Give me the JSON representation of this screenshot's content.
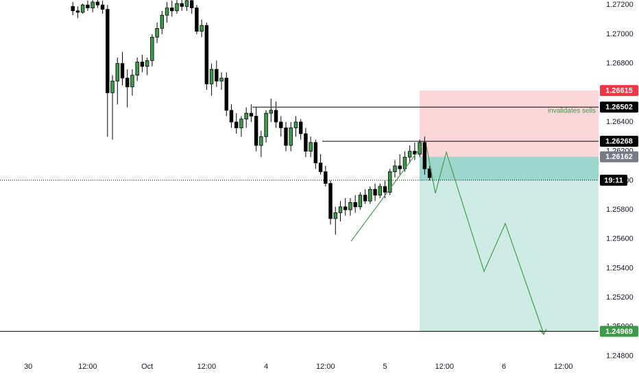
{
  "chart_data": {
    "type": "candlestick",
    "open": [
      1.2719,
      1.2716,
      1.2715,
      1.272,
      1.2718,
      1.2722,
      1.272,
      1.2717,
      1.266,
      1.2668,
      1.268,
      1.267,
      1.2664,
      1.2672,
      1.2681,
      1.2678,
      1.2682,
      1.2698,
      1.2704,
      1.2713,
      1.2718,
      1.2716,
      1.2721,
      1.2719,
      1.2723,
      1.2718,
      1.2702,
      1.2706,
      1.2666,
      1.2676,
      1.2668,
      1.267,
      1.2648,
      1.264,
      1.2636,
      1.2642,
      1.2646,
      1.2644,
      1.2624,
      1.263,
      1.2646,
      1.2648,
      1.264,
      1.2636,
      1.2624,
      1.2636,
      1.264,
      1.2632,
      1.262,
      1.2626,
      1.2612,
      1.2606,
      1.2598,
      1.2574,
      1.2578,
      1.2582,
      1.258,
      1.2585,
      1.2582,
      1.259,
      1.2586,
      1.2594,
      1.259,
      1.2596,
      1.2592,
      1.2606,
      1.261,
      1.2608,
      1.2616,
      1.262,
      1.2618,
      1.2626,
      1.2608
    ],
    "high": [
      1.2722,
      1.2719,
      1.2721,
      1.2723,
      1.2724,
      1.2725,
      1.2723,
      1.272,
      1.2672,
      1.2684,
      1.2688,
      1.2676,
      1.2676,
      1.2684,
      1.2686,
      1.2684,
      1.27,
      1.2708,
      1.2716,
      1.2722,
      1.2723,
      1.2724,
      1.2725,
      1.2726,
      1.2726,
      1.272,
      1.271,
      1.2708,
      1.268,
      1.2682,
      1.2674,
      1.2674,
      1.2652,
      1.2646,
      1.2644,
      1.265,
      1.2652,
      1.265,
      1.2634,
      1.2648,
      1.2656,
      1.2654,
      1.2644,
      1.264,
      1.264,
      1.2644,
      1.2642,
      1.2636,
      1.263,
      1.2628,
      1.2618,
      1.261,
      1.26,
      1.2582,
      1.2586,
      1.2588,
      1.2588,
      1.259,
      1.2592,
      1.2594,
      1.2596,
      1.2598,
      1.2598,
      1.26,
      1.2608,
      1.2614,
      1.2618,
      1.262,
      1.2624,
      1.2626,
      1.2628,
      1.263,
      1.261
    ],
    "low": [
      1.2713,
      1.2711,
      1.2714,
      1.2716,
      1.2715,
      1.2718,
      1.2714,
      1.263,
      1.2628,
      1.2652,
      1.2665,
      1.265,
      1.2658,
      1.2668,
      1.2674,
      1.2672,
      1.2678,
      1.2694,
      1.27,
      1.2708,
      1.2712,
      1.2714,
      1.2716,
      1.2716,
      1.2714,
      1.27,
      1.2698,
      1.2662,
      1.2658,
      1.2664,
      1.2662,
      1.2644,
      1.2636,
      1.2632,
      1.263,
      1.2636,
      1.264,
      1.262,
      1.2616,
      1.2626,
      1.264,
      1.2636,
      1.263,
      1.262,
      1.262,
      1.263,
      1.2628,
      1.2616,
      1.2616,
      1.2608,
      1.2604,
      1.2596,
      1.257,
      1.2563,
      1.2572,
      1.2576,
      1.2576,
      1.2578,
      1.258,
      1.2584,
      1.2584,
      1.2586,
      1.2588,
      1.2588,
      1.259,
      1.2602,
      1.2604,
      1.2606,
      1.2612,
      1.2614,
      1.2616,
      1.2604,
      1.26
    ],
    "close": [
      1.2716,
      1.2715,
      1.272,
      1.2718,
      1.2722,
      1.272,
      1.2717,
      1.266,
      1.2668,
      1.268,
      1.267,
      1.2664,
      1.2672,
      1.2681,
      1.2678,
      1.2682,
      1.2698,
      1.2704,
      1.2713,
      1.2718,
      1.2716,
      1.2721,
      1.2719,
      1.2723,
      1.2718,
      1.2702,
      1.2706,
      1.2666,
      1.2676,
      1.2668,
      1.267,
      1.2648,
      1.264,
      1.2636,
      1.2642,
      1.2646,
      1.2644,
      1.2624,
      1.263,
      1.2646,
      1.2648,
      1.264,
      1.2636,
      1.2624,
      1.2636,
      1.264,
      1.2632,
      1.262,
      1.2626,
      1.2612,
      1.2606,
      1.2598,
      1.2574,
      1.2578,
      1.2582,
      1.258,
      1.2585,
      1.2582,
      1.259,
      1.2586,
      1.2594,
      1.259,
      1.2596,
      1.2592,
      1.2606,
      1.261,
      1.2608,
      1.2616,
      1.262,
      1.2618,
      1.2626,
      1.2608,
      1.2602
    ],
    "up_color": "#3c9a4a",
    "down_color": "#000000",
    "xlim": [
      -14.7,
      106.1
    ],
    "xticks": [
      {
        "value": -9,
        "label": "30"
      },
      {
        "value": 3,
        "label": "12:00"
      },
      {
        "value": 15,
        "label": "Oct"
      },
      {
        "value": 27,
        "label": "12:00"
      },
      {
        "value": 39,
        "label": "4"
      },
      {
        "value": 51,
        "label": "12:00"
      },
      {
        "value": 63,
        "label": "5"
      },
      {
        "value": 75,
        "label": "12:00"
      },
      {
        "value": 87,
        "label": "6"
      },
      {
        "value": 99,
        "label": "12:00"
      }
    ],
    "ylim": [
      1.24788,
      1.27234
    ],
    "yticks": [
      {
        "value": 1.248,
        "label": "1.24800"
      },
      {
        "value": 1.25,
        "label": "1.25000"
      },
      {
        "value": 1.252,
        "label": "1.25200"
      },
      {
        "value": 1.254,
        "label": "1.25400"
      },
      {
        "value": 1.256,
        "label": "1.25600"
      },
      {
        "value": 1.258,
        "label": "1.25800"
      },
      {
        "value": 1.26,
        "label": "1.26000"
      },
      {
        "value": 1.262,
        "label": "1.26200"
      },
      {
        "value": 1.264,
        "label": "1.26400"
      },
      {
        "value": 1.266,
        "label": "1.26600"
      },
      {
        "value": 1.268,
        "label": "1.26800"
      },
      {
        "value": 1.27,
        "label": "1.27000"
      },
      {
        "value": 1.272,
        "label": "1.27200"
      }
    ],
    "grid": false,
    "levels": [
      {
        "value": 1.26615,
        "color": "#f23645"
      },
      {
        "value": 1.26502,
        "color": "#000000"
      },
      {
        "value": 1.26268,
        "color": "#000000"
      },
      {
        "value": 1.26162,
        "color": "#787b86"
      },
      {
        "value": 1.24969,
        "color": "#3c9a4a"
      }
    ],
    "stop_zone": [
      1.26162,
      1.26615
    ],
    "target_zone": [
      1.24969,
      1.26162
    ],
    "current_price": 1.26002,
    "countdown": "19:11",
    "annotation": "invalidates sells"
  }
}
